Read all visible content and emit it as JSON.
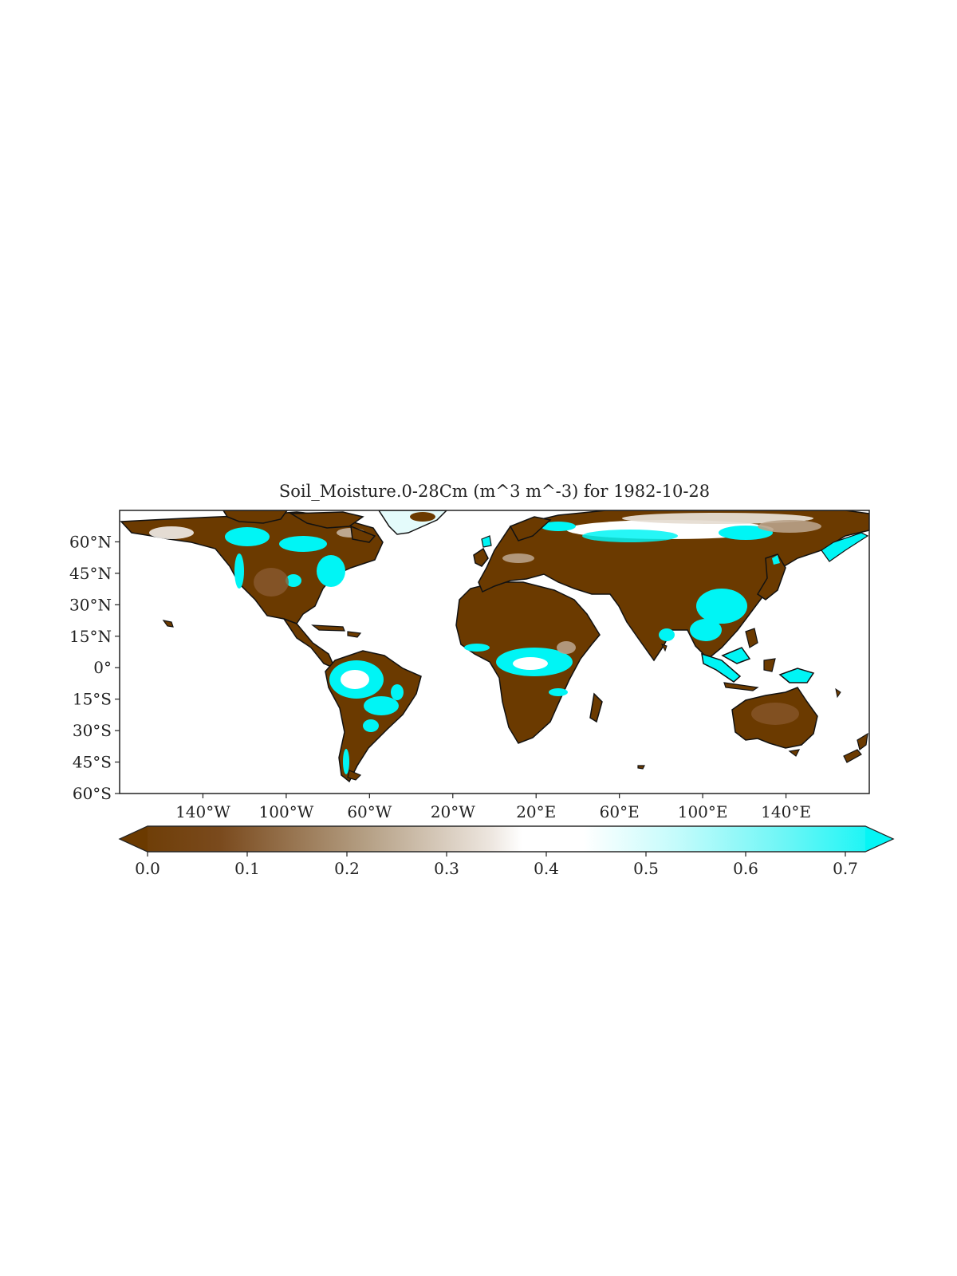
{
  "title": "Soil_Moisture.0-28Cm (m^3 m^-3) for 1982-10-28",
  "map": {
    "projection": "PlateCarree",
    "lon_range": [
      -180,
      180
    ],
    "lat_range": [
      -60,
      75
    ],
    "xticks": [
      {
        "value": -140,
        "label": "140°W"
      },
      {
        "value": -100,
        "label": "100°W"
      },
      {
        "value": -60,
        "label": "60°W"
      },
      {
        "value": -20,
        "label": "20°W"
      },
      {
        "value": 20,
        "label": "20°E"
      },
      {
        "value": 60,
        "label": "60°E"
      },
      {
        "value": 100,
        "label": "100°E"
      },
      {
        "value": 140,
        "label": "140°E"
      }
    ],
    "yticks": [
      {
        "value": 60,
        "label": "60°N"
      },
      {
        "value": 45,
        "label": "45°N"
      },
      {
        "value": 30,
        "label": "30°N"
      },
      {
        "value": 15,
        "label": "15°N"
      },
      {
        "value": 0,
        "label": "0°"
      },
      {
        "value": -15,
        "label": "15°S"
      },
      {
        "value": -30,
        "label": "30°S"
      },
      {
        "value": -45,
        "label": "45°S"
      },
      {
        "value": -60,
        "label": "60°S"
      }
    ],
    "colors": {
      "dry": "#6b3a00",
      "wet": "#00f5f5",
      "coastline": "#111111",
      "ocean": "#ffffff"
    }
  },
  "colorbar": {
    "min": 0.0,
    "max": 0.72,
    "extend": "both",
    "ticks": [
      {
        "value": 0.0,
        "label": "0.0"
      },
      {
        "value": 0.1,
        "label": "0.1"
      },
      {
        "value": 0.2,
        "label": "0.2"
      },
      {
        "value": 0.3,
        "label": "0.3"
      },
      {
        "value": 0.4,
        "label": "0.4"
      },
      {
        "value": 0.5,
        "label": "0.5"
      },
      {
        "value": 0.6,
        "label": "0.6"
      },
      {
        "value": 0.7,
        "label": "0.7"
      }
    ],
    "colors": [
      "#6b3a00",
      "#8a5a2f",
      "#b9a288",
      "#e6ddd3",
      "#ffffff",
      "#bff9f9",
      "#5ff7f7",
      "#00f5f5"
    ]
  }
}
